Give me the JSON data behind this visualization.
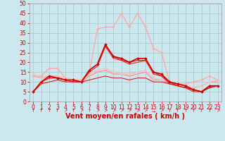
{
  "title": "",
  "xlabel": "Vent moyen/en rafales ( km/h )",
  "ylabel": "",
  "background_color": "#cce8ee",
  "grid_color": "#aacccc",
  "xlim": [
    -0.5,
    23.5
  ],
  "ylim": [
    0,
    50
  ],
  "yticks": [
    0,
    5,
    10,
    15,
    20,
    25,
    30,
    35,
    40,
    45,
    50
  ],
  "xticks": [
    0,
    1,
    2,
    3,
    4,
    5,
    6,
    7,
    8,
    9,
    10,
    11,
    12,
    13,
    14,
    15,
    16,
    17,
    18,
    19,
    20,
    21,
    22,
    23
  ],
  "series": [
    {
      "x": [
        0,
        1,
        2,
        3,
        4,
        5,
        6,
        7,
        8,
        9,
        10,
        11,
        12,
        13,
        14,
        15,
        16,
        17,
        18,
        19,
        20,
        21,
        22,
        23
      ],
      "y": [
        5,
        10,
        13,
        12,
        11,
        11,
        10,
        16,
        19,
        29,
        23,
        22,
        20,
        22,
        22,
        15,
        14,
        10,
        9,
        8,
        6,
        5,
        8,
        8
      ],
      "color": "#cc0000",
      "lw": 1.2,
      "marker": "D",
      "ms": 2.0,
      "zorder": 5
    },
    {
      "x": [
        0,
        1,
        2,
        3,
        4,
        5,
        6,
        7,
        8,
        9,
        10,
        11,
        12,
        13,
        14,
        15,
        16,
        17,
        18,
        19,
        20,
        21,
        22,
        23
      ],
      "y": [
        13,
        13,
        17,
        17,
        12,
        11,
        11,
        15,
        37,
        38,
        38,
        45,
        38,
        45,
        38,
        27,
        25,
        10,
        9,
        9,
        10,
        11,
        13,
        11
      ],
      "color": "#ffaaaa",
      "lw": 1.0,
      "marker": "D",
      "ms": 1.8,
      "zorder": 3
    },
    {
      "x": [
        0,
        1,
        2,
        3,
        4,
        5,
        6,
        7,
        8,
        9,
        10,
        11,
        12,
        13,
        14,
        15,
        16,
        17,
        18,
        19,
        20,
        21,
        22,
        23
      ],
      "y": [
        5,
        10,
        12,
        12,
        11,
        10,
        10,
        16,
        19,
        29,
        23,
        21,
        20,
        21,
        21,
        15,
        13,
        10,
        8,
        7,
        6,
        5,
        8,
        8
      ],
      "color": "#dd1111",
      "lw": 0.8,
      "marker": null,
      "ms": 0,
      "zorder": 4
    },
    {
      "x": [
        0,
        1,
        2,
        3,
        4,
        5,
        6,
        7,
        8,
        9,
        10,
        11,
        12,
        13,
        14,
        15,
        16,
        17,
        18,
        19,
        20,
        21,
        22,
        23
      ],
      "y": [
        5,
        10,
        12,
        12,
        11,
        10,
        10,
        15,
        18,
        28,
        22,
        21,
        19,
        20,
        21,
        14,
        13,
        9,
        8,
        7,
        5,
        5,
        7,
        8
      ],
      "color": "#ee2222",
      "lw": 0.8,
      "marker": null,
      "ms": 0,
      "zorder": 4
    },
    {
      "x": [
        0,
        1,
        2,
        3,
        4,
        5,
        6,
        7,
        8,
        9,
        10,
        11,
        12,
        13,
        14,
        15,
        16,
        17,
        18,
        19,
        20,
        21,
        22,
        23
      ],
      "y": [
        14,
        12,
        13,
        13,
        12,
        11,
        11,
        14,
        16,
        17,
        15,
        14,
        14,
        15,
        16,
        12,
        11,
        10,
        9,
        8,
        7,
        8,
        10,
        11
      ],
      "color": "#ffbbbb",
      "lw": 1.0,
      "marker": "D",
      "ms": 1.8,
      "zorder": 3
    },
    {
      "x": [
        0,
        1,
        2,
        3,
        4,
        5,
        6,
        7,
        8,
        9,
        10,
        11,
        12,
        13,
        14,
        15,
        16,
        17,
        18,
        19,
        20,
        21,
        22,
        23
      ],
      "y": [
        13,
        12,
        13,
        13,
        11,
        11,
        10,
        13,
        15,
        16,
        14,
        14,
        13,
        14,
        15,
        11,
        11,
        9,
        9,
        8,
        7,
        8,
        10,
        10
      ],
      "color": "#ff8888",
      "lw": 0.8,
      "marker": null,
      "ms": 0,
      "zorder": 2
    },
    {
      "x": [
        0,
        1,
        2,
        3,
        4,
        5,
        6,
        7,
        8,
        9,
        10,
        11,
        12,
        13,
        14,
        15,
        16,
        17,
        18,
        19,
        20,
        21,
        22,
        23
      ],
      "y": [
        5,
        9,
        10,
        11,
        10,
        10,
        10,
        11,
        12,
        13,
        12,
        12,
        11,
        12,
        12,
        10,
        10,
        9,
        8,
        7,
        6,
        5,
        7,
        8
      ],
      "color": "#cc2222",
      "lw": 0.8,
      "marker": null,
      "ms": 0,
      "zorder": 4
    }
  ],
  "arrow_color": "#cc0000",
  "xlabel_color": "#cc0000",
  "xlabel_fontsize": 7,
  "tick_color": "#cc0000",
  "tick_fontsize": 5.5
}
